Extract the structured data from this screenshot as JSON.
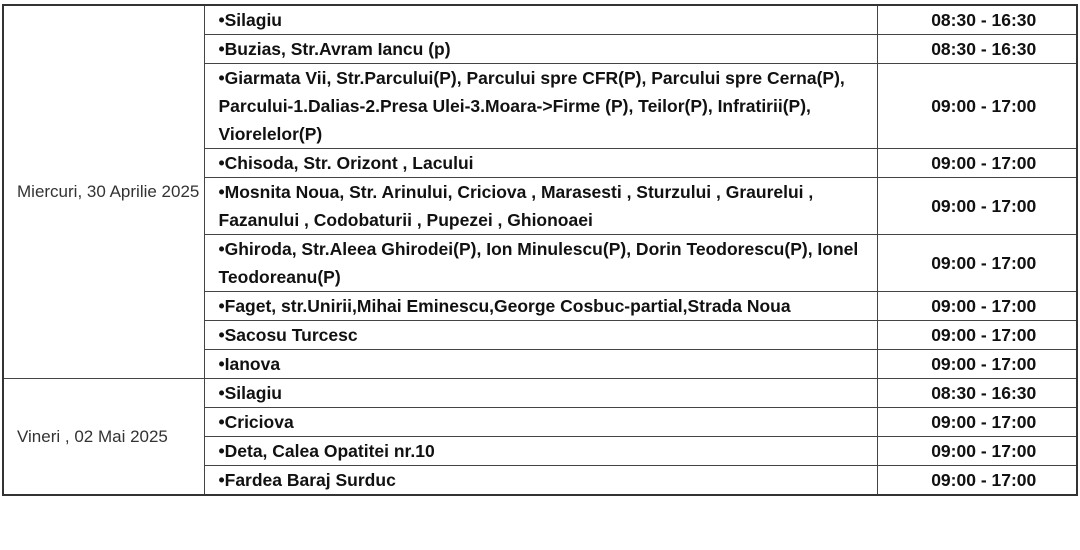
{
  "schedule": [
    {
      "day": "Miercuri, 30 Aprilie 2025",
      "rows": [
        {
          "location": "•Silagiu",
          "hours": "08:30 - 16:30"
        },
        {
          "location": "•Buzias, Str.Avram Iancu (p)",
          "hours": "08:30 - 16:30"
        },
        {
          "location": "•Giarmata Vii, Str.Parcului(P), Parcului spre CFR(P), Parcului spre Cerna(P), Parcului-1.Dalias-2.Presa Ulei-3.Moara->Firme (P), Teilor(P), Infratirii(P), Viorelelor(P)",
          "hours": "09:00 - 17:00"
        },
        {
          "location": "•Chisoda, Str. Orizont , Lacului",
          "hours": "09:00 - 17:00"
        },
        {
          "location": "•Mosnita Noua, Str. Arinului, Criciova , Marasesti , Sturzului , Graurelui , Fazanului , Codobaturii , Pupezei , Ghionoaei",
          "hours": "09:00 - 17:00"
        },
        {
          "location": "•Ghiroda, Str.Aleea Ghirodei(P), Ion Minulescu(P), Dorin Teodorescu(P), Ionel Teodoreanu(P)",
          "hours": "09:00 - 17:00"
        },
        {
          "location": "•Faget, str.Unirii,Mihai Eminescu,George Cosbuc-partial,Strada Noua",
          "hours": "09:00 - 17:00"
        },
        {
          "location": "•Sacosu Turcesc",
          "hours": "09:00 - 17:00"
        },
        {
          "location": "•Ianova",
          "hours": "09:00 - 17:00"
        }
      ]
    },
    {
      "day": "Vineri , 02 Mai 2025",
      "rows": [
        {
          "location": "•Silagiu",
          "hours": "08:30 - 16:30"
        },
        {
          "location": "•Criciova",
          "hours": "09:00 - 17:00"
        },
        {
          "location": "•Deta, Calea Opatitei nr.10",
          "hours": "09:00 - 17:00"
        },
        {
          "location": "•Fardea Baraj Surduc",
          "hours": "09:00 - 17:00"
        }
      ]
    }
  ]
}
